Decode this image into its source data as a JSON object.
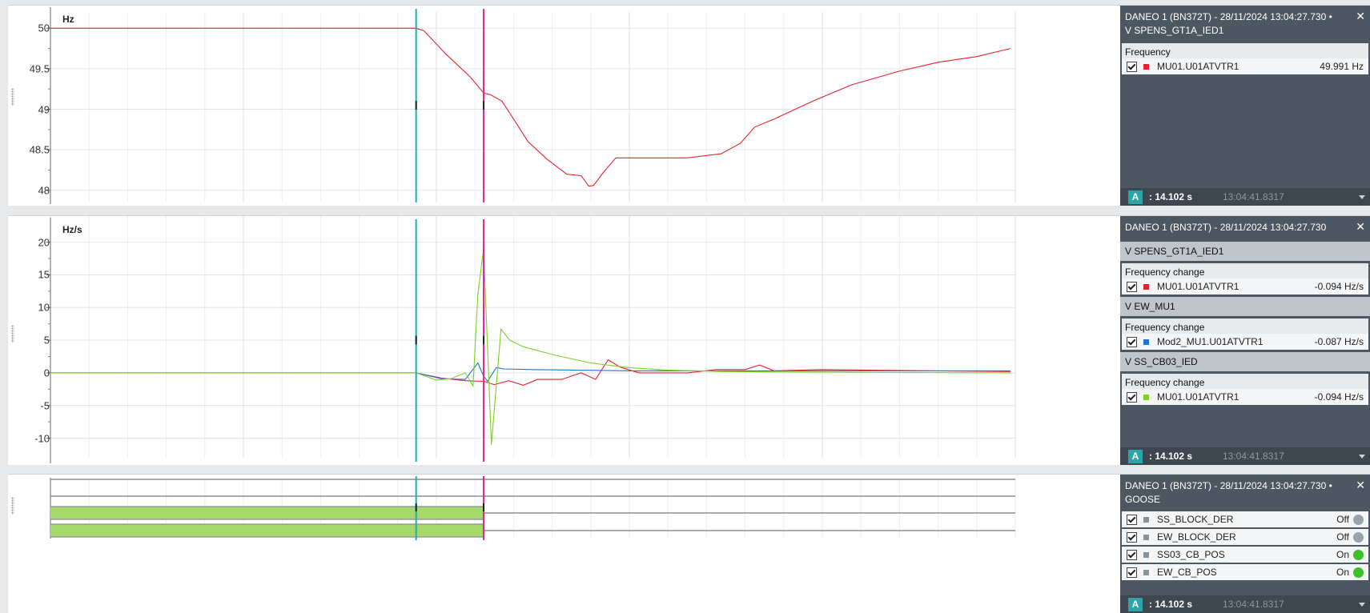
{
  "colors": {
    "cursor_a": "#1eb0b0",
    "cursor_b": "#e0249a",
    "series_red": "#e8212e",
    "series_blue": "#1f77d0",
    "series_green": "#7cd121",
    "goose_fill": "#a6d96a",
    "panel_bg": "#4d5761"
  },
  "freq_pane": {
    "unit": "Hz",
    "y_ticks": [
      "50",
      "49.5",
      "49",
      "48.5",
      "48"
    ],
    "info": {
      "header_line1": "DANEO 1 (BN372T) - 28/11/2024 13:04:27.730 •",
      "header_line2": "V SPENS_GT1A_IED1",
      "group_title": "Frequency",
      "signal_name": "MU01.U01ATVTR1",
      "signal_value": "49.991 Hz",
      "cursor_label": "A",
      "cursor_rel": ": 14.102 s",
      "cursor_abs": "13:04:41.8317"
    }
  },
  "rocof_pane": {
    "unit": "Hz/s",
    "y_ticks": [
      "20",
      "15",
      "10",
      "5",
      "0",
      "-5",
      "-10"
    ],
    "info": {
      "header_line1": "DANEO 1 (BN372T) - 28/11/2024 13:04:27.730",
      "groups": [
        {
          "device": "V SPENS_GT1A_IED1",
          "title": "Frequency change",
          "signal": "MU01.U01ATVTR1",
          "value": "-0.094 Hz/s"
        },
        {
          "device": "V EW_MU1",
          "title": "Frequency change",
          "signal": "Mod2_MU1.U01ATVTR1",
          "value": "-0.087 Hz/s"
        },
        {
          "device": "V SS_CB03_IED",
          "title": "Frequency change",
          "signal": "MU01.U01ATVTR1",
          "value": "-0.094 Hz/s"
        }
      ],
      "cursor_label": "A",
      "cursor_rel": ": 14.102 s",
      "cursor_abs": "13:04:41.8317"
    }
  },
  "goose_pane": {
    "info": {
      "header_line1": "DANEO 1 (BN372T) - 28/11/2024 13:04:27.730 •",
      "header_line2": "GOOSE",
      "signals": [
        {
          "name": "SS_BLOCK_DER",
          "state": "Off"
        },
        {
          "name": "EW_BLOCK_DER",
          "state": "Off"
        },
        {
          "name": "SS03_CB_POS",
          "state": "On"
        },
        {
          "name": "EW_CB_POS",
          "state": "On"
        }
      ],
      "cursor_label": "A",
      "cursor_rel": ": 14.102 s",
      "cursor_abs": "13:04:41.8317"
    }
  },
  "chart_data": [
    {
      "type": "line",
      "ylabel": "Hz",
      "ylim": [
        47.85,
        50.2
      ],
      "xlim": [
        0,
        100
      ],
      "grid": true,
      "cursors": {
        "A": 37.9,
        "B": 44.9
      },
      "series": [
        {
          "color": "#e8212e",
          "x": [
            0,
            37.9,
            38.7,
            41,
            43.5,
            44.9,
            45.6,
            46.8,
            48,
            49.5,
            51.5,
            53.5,
            55,
            55.8,
            56.3,
            57.3,
            58.6,
            62,
            66,
            69.5,
            71.5,
            73,
            75,
            79,
            83,
            88,
            92,
            96,
            99.5
          ],
          "y": [
            50,
            50,
            49.97,
            49.68,
            49.4,
            49.2,
            49.18,
            49.1,
            48.88,
            48.6,
            48.38,
            48.2,
            48.18,
            48.05,
            48.06,
            48.22,
            48.4,
            48.4,
            48.4,
            48.45,
            48.58,
            48.78,
            48.88,
            49.1,
            49.3,
            49.47,
            49.58,
            49.65,
            49.75
          ]
        }
      ]
    },
    {
      "type": "line",
      "ylabel": "Hz/s",
      "ylim": [
        -13,
        24
      ],
      "xlim": [
        0,
        100
      ],
      "grid": true,
      "cursors": {
        "A": 37.9,
        "B": 44.9
      },
      "series": [
        {
          "color": "#e8212e",
          "x": [
            0,
            37.9,
            40.5,
            43,
            44.9,
            46,
            47.5,
            49,
            50.5,
            53,
            55,
            56.5,
            57.8,
            59,
            61,
            63,
            66,
            69,
            72,
            73.5,
            75,
            80,
            85,
            99.5
          ],
          "y": [
            0,
            0,
            -0.8,
            -1.2,
            -1.3,
            -1.8,
            -1.2,
            -1.9,
            -1.0,
            -1.0,
            0.0,
            -1.0,
            2.0,
            0.9,
            0.0,
            0.0,
            0.0,
            0.5,
            0.5,
            1.2,
            0.3,
            0.5,
            0.4,
            0.2
          ]
        },
        {
          "color": "#1f77d0",
          "x": [
            0,
            37.9,
            40.5,
            43,
            44.3,
            44.9,
            45.3,
            46.2,
            47,
            50,
            60,
            70,
            80,
            99.5
          ],
          "y": [
            0,
            0,
            -0.9,
            -1.0,
            1.5,
            -0.5,
            -1.3,
            0.8,
            0.6,
            0.5,
            0.3,
            0.3,
            0.3,
            0.3
          ]
        },
        {
          "color": "#7cd121",
          "x": [
            0,
            37.9,
            40,
            41.5,
            43,
            43.8,
            44.3,
            44.9,
            45.7,
            46.7,
            47.6,
            49,
            52,
            56,
            60,
            64,
            70,
            80,
            99.5
          ],
          "y": [
            0,
            0,
            -1.1,
            -0.9,
            0.0,
            -2.0,
            12.0,
            19.0,
            -11.0,
            6.7,
            5.0,
            4.0,
            2.8,
            1.5,
            0.8,
            0.4,
            0.2,
            0.1,
            0.0
          ]
        }
      ]
    }
  ]
}
